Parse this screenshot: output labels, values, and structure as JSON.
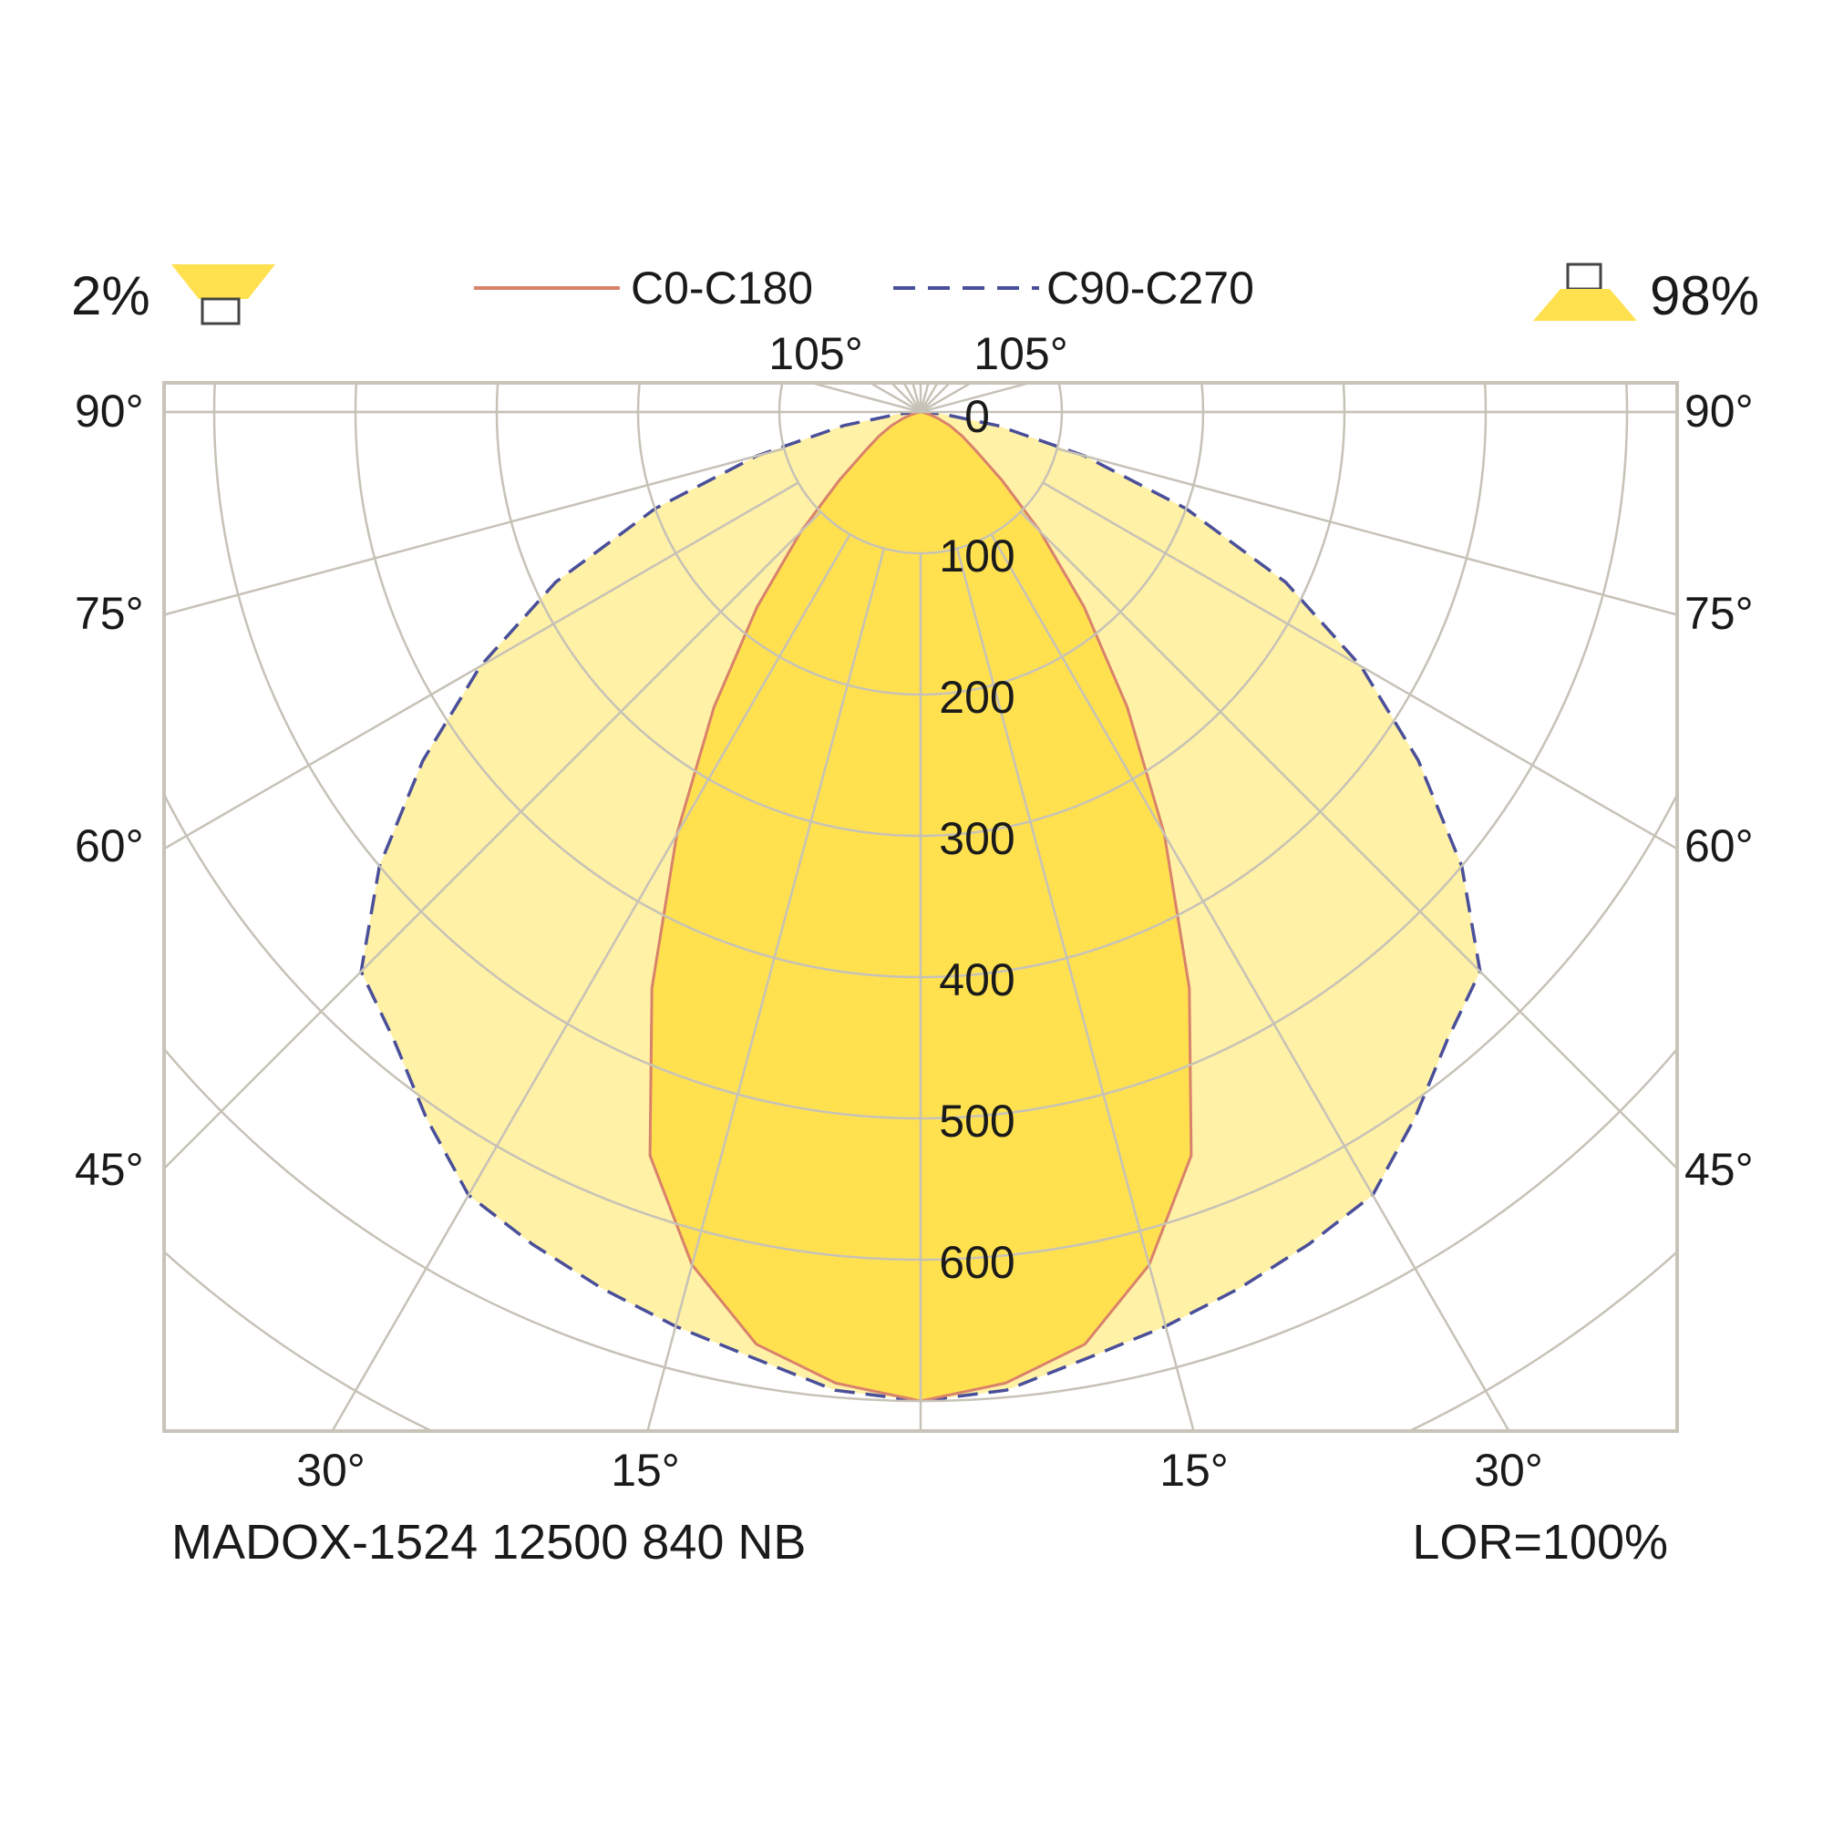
{
  "chart_data": {
    "type": "polar-luminous-intensity",
    "downward_symbol": "downlight-luminaire-icon",
    "upward_symbol": "uplight-luminaire-icon",
    "upward_percent": "2%",
    "downward_percent": "98%",
    "legend": [
      {
        "label": "C0-C180",
        "color": "#d9826b",
        "style": "solid"
      },
      {
        "label": "C90-C270",
        "color": "#4a4f9a",
        "style": "dashed"
      }
    ],
    "radial_tick_labels": [
      "0",
      "100",
      "200",
      "300",
      "400",
      "500",
      "600"
    ],
    "radial_ticks": [
      0,
      100,
      200,
      300,
      400,
      500,
      600
    ],
    "angle_labels_top": [
      "105°",
      "105°"
    ],
    "angle_labels_left": [
      "90°",
      "75°",
      "60°",
      "45°"
    ],
    "angle_labels_right": [
      "90°",
      "75°",
      "60°",
      "45°"
    ],
    "angle_labels_bottom": [
      "30°",
      "15°",
      "15°",
      "30°"
    ],
    "luminaire_name": "MADOX-1524 12500 840 NB",
    "lor": "LOR=100%",
    "angles_deg": [
      0,
      5,
      10,
      15,
      20,
      25,
      30,
      35,
      40,
      45,
      50,
      55,
      60,
      65,
      70,
      75,
      80,
      85,
      90
    ],
    "series": [
      {
        "name": "C0-C180",
        "values": [
          700,
          690,
          670,
          625,
          560,
          450,
          345,
          255,
          180,
          120,
          75,
          48,
          34,
          23,
          13,
          6,
          2,
          0,
          0
        ]
      },
      {
        "name": "C90-C270",
        "values": [
          700,
          695,
          680,
          670,
          660,
          650,
          640,
          610,
          580,
          560,
          500,
          430,
          360,
          285,
          200,
          120,
          55,
          15,
          0
        ]
      }
    ],
    "colors": {
      "c0_fill": "#ffe14f",
      "c90_fill": "#fff1a6",
      "grid": "#c7c2b7",
      "frame": "#c9c4b9",
      "icon_fill": "#ffe14f"
    }
  }
}
